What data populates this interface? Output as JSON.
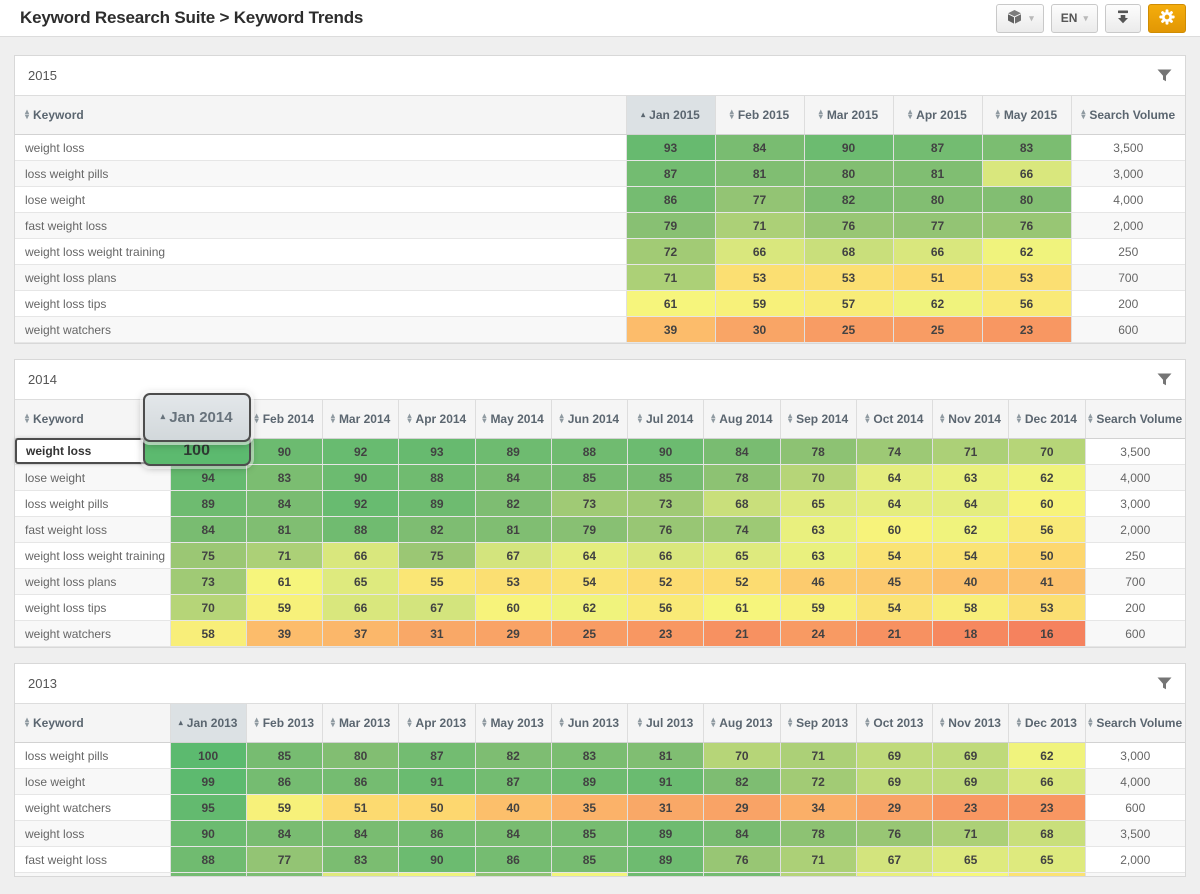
{
  "header": {
    "title": "Keyword Research Suite > Keyword Trends"
  },
  "toolbar": {
    "export_button": {
      "icon": "cube-icon",
      "caret": "▾"
    },
    "language_button": {
      "label": "EN",
      "caret": "▾"
    },
    "download_button": {
      "icon": "download-icon"
    },
    "settings_button": {
      "icon": "gear-icon",
      "color": "#efa40a"
    }
  },
  "icons": {
    "sort_up": "▴",
    "sort_down": "▾",
    "sort_asc": "▴",
    "filter": "funnel"
  },
  "heatmap_stops": [
    [
      16,
      "#f5825e"
    ],
    [
      24,
      "#f89a63"
    ],
    [
      30,
      "#f9a566"
    ],
    [
      40,
      "#fcbf6b"
    ],
    [
      46,
      "#fccb6e"
    ],
    [
      50,
      "#fdd76f"
    ],
    [
      53,
      "#fbdf72"
    ],
    [
      56,
      "#f9ea77"
    ],
    [
      61,
      "#f6f57c"
    ],
    [
      63,
      "#e9f07e"
    ],
    [
      67,
      "#d3e47d"
    ],
    [
      72,
      "#a2cb75"
    ],
    [
      76,
      "#98c674"
    ],
    [
      80,
      "#82be72"
    ],
    [
      85,
      "#77bc71"
    ],
    [
      90,
      "#6cbb70"
    ],
    [
      95,
      "#63ba6f"
    ],
    [
      100,
      "#5cba6f"
    ]
  ],
  "tables": [
    {
      "year": "2015",
      "keyword_header": "Keyword",
      "volume_header": "Search Volume",
      "sorted_col": 0,
      "months": [
        "Jan 2015",
        "Feb 2015",
        "Mar 2015",
        "Apr 2015",
        "May 2015"
      ],
      "rows": [
        {
          "keyword": "weight loss",
          "values": [
            93,
            84,
            90,
            87,
            83
          ],
          "volume": "3,500"
        },
        {
          "keyword": "loss weight pills",
          "values": [
            87,
            81,
            80,
            81,
            66
          ],
          "volume": "3,000"
        },
        {
          "keyword": "lose weight",
          "values": [
            86,
            77,
            82,
            80,
            80
          ],
          "volume": "4,000"
        },
        {
          "keyword": "fast weight loss",
          "values": [
            79,
            71,
            76,
            77,
            76
          ],
          "volume": "2,000"
        },
        {
          "keyword": "weight loss weight training",
          "values": [
            72,
            66,
            68,
            66,
            62
          ],
          "volume": "250"
        },
        {
          "keyword": "weight loss plans",
          "values": [
            71,
            53,
            53,
            51,
            53
          ],
          "volume": "700"
        },
        {
          "keyword": "weight loss tips",
          "values": [
            61,
            59,
            57,
            62,
            56
          ],
          "volume": "200"
        },
        {
          "keyword": "weight watchers",
          "values": [
            39,
            30,
            25,
            25,
            23
          ],
          "volume": "600"
        }
      ]
    },
    {
      "year": "2014",
      "keyword_header": "Keyword",
      "volume_header": "Search Volume",
      "sorted_col": 0,
      "popout": {
        "row": 0,
        "col": 0
      },
      "months": [
        "Jan 2014",
        "Feb 2014",
        "Mar 2014",
        "Apr 2014",
        "May 2014",
        "Jun 2014",
        "Jul 2014",
        "Aug 2014",
        "Sep 2014",
        "Oct 2014",
        "Nov 2014",
        "Dec 2014"
      ],
      "rows": [
        {
          "keyword": "weight loss",
          "values": [
            100,
            90,
            92,
            93,
            89,
            88,
            90,
            84,
            78,
            74,
            71,
            70
          ],
          "volume": "3,500"
        },
        {
          "keyword": "lose weight",
          "values": [
            94,
            83,
            90,
            88,
            84,
            85,
            85,
            78,
            70,
            64,
            63,
            62
          ],
          "volume": "4,000"
        },
        {
          "keyword": "loss weight pills",
          "values": [
            89,
            84,
            92,
            89,
            82,
            73,
            73,
            68,
            65,
            64,
            64,
            60
          ],
          "volume": "3,000"
        },
        {
          "keyword": "fast weight loss",
          "values": [
            84,
            81,
            88,
            82,
            81,
            79,
            76,
            74,
            63,
            60,
            62,
            56
          ],
          "volume": "2,000"
        },
        {
          "keyword": "weight loss weight training",
          "values": [
            75,
            71,
            66,
            75,
            67,
            64,
            66,
            65,
            63,
            54,
            54,
            50
          ],
          "volume": "250"
        },
        {
          "keyword": "weight loss plans",
          "values": [
            73,
            61,
            65,
            55,
            53,
            54,
            52,
            52,
            46,
            45,
            40,
            41
          ],
          "volume": "700"
        },
        {
          "keyword": "weight loss tips",
          "values": [
            70,
            59,
            66,
            67,
            60,
            62,
            56,
            61,
            59,
            54,
            58,
            53
          ],
          "volume": "200"
        },
        {
          "keyword": "weight watchers",
          "values": [
            58,
            39,
            37,
            31,
            29,
            25,
            23,
            21,
            24,
            21,
            18,
            16
          ],
          "volume": "600"
        }
      ]
    },
    {
      "year": "2013",
      "keyword_header": "Keyword",
      "volume_header": "Search Volume",
      "sorted_col": 0,
      "months": [
        "Jan 2013",
        "Feb 2013",
        "Mar 2013",
        "Apr 2013",
        "May 2013",
        "Jun 2013",
        "Jul 2013",
        "Aug 2013",
        "Sep 2013",
        "Oct 2013",
        "Nov 2013",
        "Dec 2013"
      ],
      "rows": [
        {
          "keyword": "loss weight pills",
          "values": [
            100,
            85,
            80,
            87,
            82,
            83,
            81,
            70,
            71,
            69,
            69,
            62
          ],
          "volume": "3,000"
        },
        {
          "keyword": "lose weight",
          "values": [
            99,
            86,
            86,
            91,
            87,
            89,
            91,
            82,
            72,
            69,
            69,
            66
          ],
          "volume": "4,000"
        },
        {
          "keyword": "weight watchers",
          "values": [
            95,
            59,
            51,
            50,
            40,
            35,
            31,
            29,
            34,
            29,
            23,
            23
          ],
          "volume": "600"
        },
        {
          "keyword": "weight loss",
          "values": [
            90,
            84,
            84,
            86,
            84,
            85,
            89,
            84,
            78,
            76,
            71,
            68
          ],
          "volume": "3,500"
        },
        {
          "keyword": "fast weight loss",
          "values": [
            88,
            77,
            83,
            90,
            86,
            85,
            89,
            76,
            71,
            67,
            65,
            65
          ],
          "volume": "2,000"
        }
      ],
      "partial_row_colors": [
        "#74bb71",
        "#7cbd72",
        "#dfe97d",
        "#eef37e",
        "#8fc373",
        "#f2f57d",
        "#6fbb70",
        "#74bb71",
        "#b5d479",
        "#e8ef7d",
        "#f6f77c",
        "#fbe274"
      ]
    }
  ]
}
